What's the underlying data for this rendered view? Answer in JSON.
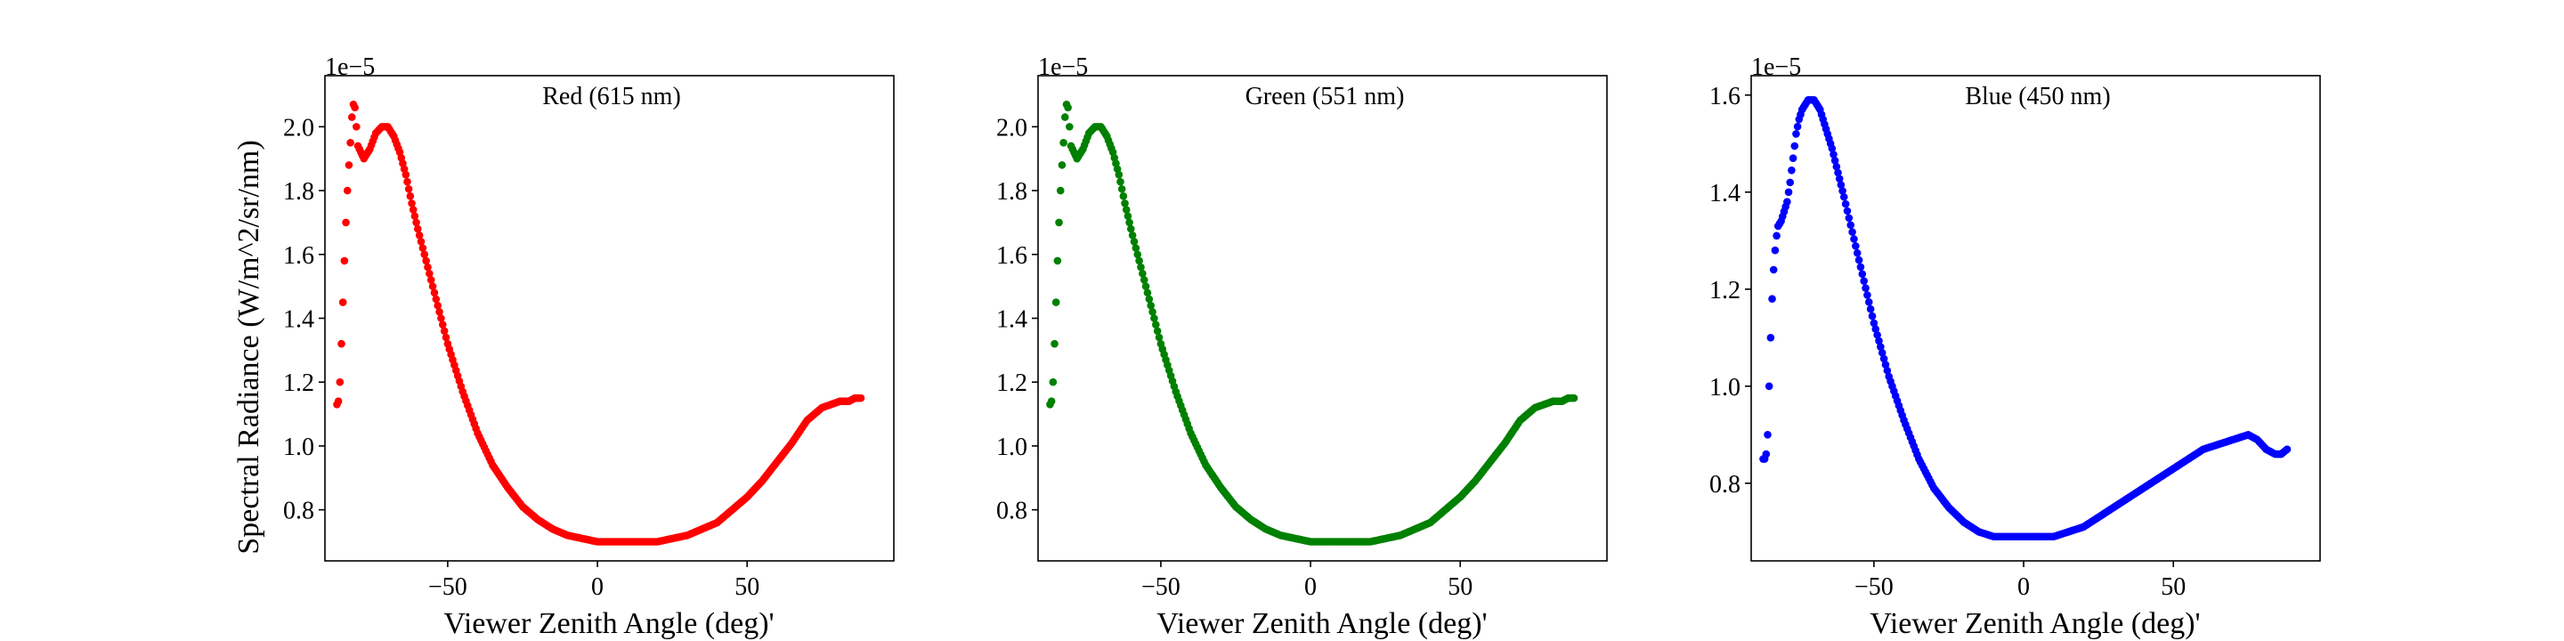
{
  "figure": {
    "ylabel": "Spectral Radiance (W/m^2/sr/nm)"
  },
  "chart_data": [
    {
      "type": "scatter",
      "title": "Red (615 nm)",
      "xlabel": "Viewer Zenith Angle (deg)'",
      "ylabel": "Spectral Radiance (W/m^2/sr/nm)",
      "y_offset_label": "1e−5",
      "color": "#ff0000",
      "xlim": [
        -91,
        99
      ],
      "ylim": [
        0.64,
        2.16
      ],
      "xticks": [
        -50,
        0,
        50
      ],
      "xtick_labels": [
        "−50",
        "0",
        "50"
      ],
      "yticks": [
        0.8,
        1.0,
        1.2,
        1.4,
        1.6,
        1.8,
        2.0
      ],
      "ytick_labels": [
        "0.8",
        "1.0",
        "1.2",
        "1.4",
        "1.6",
        "1.8",
        "2.0"
      ],
      "grid": false,
      "series": [
        {
          "x": [
            -87,
            -86.5,
            -86,
            -85.5,
            -85,
            -84.5,
            -84,
            -83.5,
            -83,
            -82.5,
            -82,
            -81.5,
            -81,
            -80.5,
            -80,
            -78,
            -76,
            -74,
            -72,
            -70,
            -68,
            -66,
            -64,
            -62,
            -60,
            -55,
            -50,
            -45,
            -40,
            -35,
            -30,
            -25,
            -20,
            -15,
            -10,
            -5,
            0,
            5,
            10,
            15,
            20,
            25,
            30,
            35,
            40,
            45,
            50,
            55,
            60,
            65,
            70,
            75,
            78,
            81,
            84,
            86,
            88
          ],
          "y": [
            1.13,
            1.14,
            1.2,
            1.32,
            1.45,
            1.58,
            1.7,
            1.8,
            1.88,
            1.95,
            2.03,
            2.07,
            2.06,
            2.0,
            1.94,
            1.9,
            1.93,
            1.98,
            2.0,
            2.0,
            1.97,
            1.92,
            1.85,
            1.76,
            1.68,
            1.5,
            1.32,
            1.17,
            1.04,
            0.94,
            0.87,
            0.81,
            0.77,
            0.74,
            0.72,
            0.71,
            0.7,
            0.7,
            0.7,
            0.7,
            0.7,
            0.71,
            0.72,
            0.74,
            0.76,
            0.8,
            0.84,
            0.89,
            0.95,
            1.01,
            1.08,
            1.12,
            1.13,
            1.14,
            1.14,
            1.15,
            1.15
          ]
        }
      ]
    },
    {
      "type": "scatter",
      "title": "Green (551 nm)",
      "xlabel": "Viewer Zenith Angle (deg)'",
      "ylabel": "",
      "y_offset_label": "1e−5",
      "color": "#008000",
      "xlim": [
        -91,
        99
      ],
      "ylim": [
        0.64,
        2.16
      ],
      "xticks": [
        -50,
        0,
        50
      ],
      "xtick_labels": [
        "−50",
        "0",
        "50"
      ],
      "yticks": [
        0.8,
        1.0,
        1.2,
        1.4,
        1.6,
        1.8,
        2.0
      ],
      "ytick_labels": [
        "0.8",
        "1.0",
        "1.2",
        "1.4",
        "1.6",
        "1.8",
        "2.0"
      ],
      "grid": false,
      "series": [
        {
          "x": [
            -87,
            -86.5,
            -86,
            -85.5,
            -85,
            -84.5,
            -84,
            -83.5,
            -83,
            -82.5,
            -82,
            -81.5,
            -81,
            -80.5,
            -80,
            -78,
            -76,
            -74,
            -72,
            -70,
            -68,
            -66,
            -64,
            -62,
            -60,
            -55,
            -50,
            -45,
            -40,
            -35,
            -30,
            -25,
            -20,
            -15,
            -10,
            -5,
            0,
            5,
            10,
            15,
            20,
            25,
            30,
            35,
            40,
            45,
            50,
            55,
            60,
            65,
            70,
            75,
            78,
            81,
            84,
            86,
            88
          ],
          "y": [
            1.13,
            1.14,
            1.2,
            1.32,
            1.45,
            1.58,
            1.7,
            1.8,
            1.88,
            1.95,
            2.03,
            2.07,
            2.06,
            2.0,
            1.94,
            1.9,
            1.93,
            1.98,
            2.0,
            2.0,
            1.97,
            1.92,
            1.85,
            1.76,
            1.68,
            1.5,
            1.32,
            1.17,
            1.04,
            0.94,
            0.87,
            0.81,
            0.77,
            0.74,
            0.72,
            0.71,
            0.7,
            0.7,
            0.7,
            0.7,
            0.7,
            0.71,
            0.72,
            0.74,
            0.76,
            0.8,
            0.84,
            0.89,
            0.95,
            1.01,
            1.08,
            1.12,
            1.13,
            1.14,
            1.14,
            1.15,
            1.15
          ]
        }
      ]
    },
    {
      "type": "scatter",
      "title": "Blue (450 nm)",
      "xlabel": "Viewer Zenith Angle (deg)'",
      "ylabel": "",
      "y_offset_label": "1e−5",
      "color": "#0000ff",
      "xlim": [
        -91,
        99
      ],
      "ylim": [
        0.64,
        1.64
      ],
      "xticks": [
        -50,
        0,
        50
      ],
      "xtick_labels": [
        "−50",
        "0",
        "50"
      ],
      "yticks": [
        0.8,
        1.0,
        1.2,
        1.4,
        1.6
      ],
      "ytick_labels": [
        "0.8",
        "1.0",
        "1.2",
        "1.4",
        "1.6"
      ],
      "grid": false,
      "series": [
        {
          "x": [
            -87,
            -86.5,
            -86,
            -85.5,
            -85,
            -84.5,
            -84,
            -83.5,
            -83,
            -82.5,
            -82,
            -81,
            -80,
            -79,
            -78,
            -77,
            -76,
            -75,
            -74,
            -72,
            -70,
            -68,
            -66,
            -64,
            -62,
            -60,
            -55,
            -50,
            -45,
            -40,
            -35,
            -30,
            -25,
            -20,
            -15,
            -10,
            -5,
            0,
            5,
            10,
            15,
            20,
            25,
            30,
            35,
            40,
            45,
            50,
            55,
            60,
            65,
            70,
            75,
            78,
            81,
            84,
            86,
            88
          ],
          "y": [
            0.85,
            0.85,
            0.86,
            0.9,
            1.0,
            1.1,
            1.18,
            1.24,
            1.28,
            1.31,
            1.33,
            1.34,
            1.36,
            1.38,
            1.42,
            1.47,
            1.52,
            1.55,
            1.57,
            1.59,
            1.59,
            1.57,
            1.53,
            1.49,
            1.44,
            1.39,
            1.26,
            1.13,
            1.02,
            0.93,
            0.85,
            0.79,
            0.75,
            0.72,
            0.7,
            0.69,
            0.69,
            0.69,
            0.69,
            0.69,
            0.7,
            0.71,
            0.73,
            0.75,
            0.77,
            0.79,
            0.81,
            0.83,
            0.85,
            0.87,
            0.88,
            0.89,
            0.9,
            0.89,
            0.87,
            0.86,
            0.86,
            0.87
          ]
        }
      ]
    }
  ]
}
